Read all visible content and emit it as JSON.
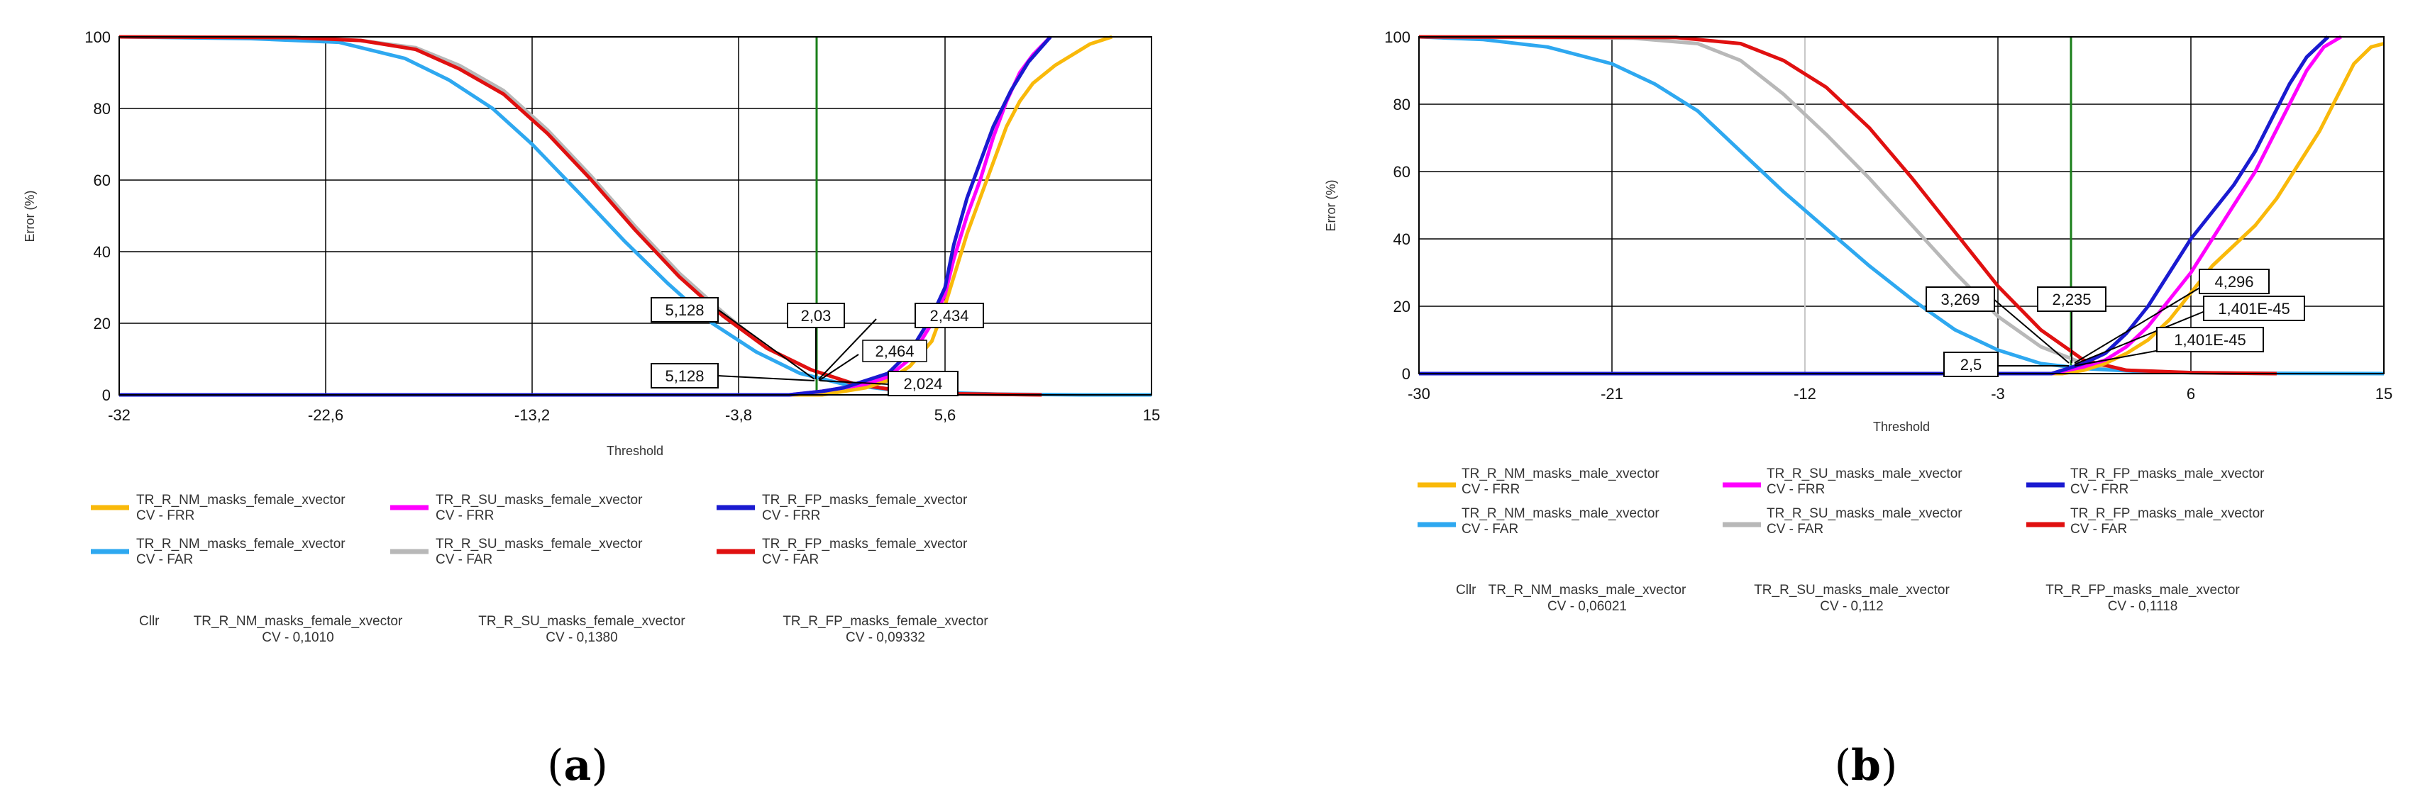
{
  "chart_data": [
    {
      "id": "a",
      "caption_open": "(",
      "caption_letter": "a",
      "caption_close": ")",
      "type": "line",
      "xlabel": "Threshold",
      "ylabel": "Error (%)",
      "xlim": [
        -32,
        15
      ],
      "ylim": [
        0,
        100
      ],
      "xticks": [
        -32,
        -22.6,
        -13.2,
        -3.8,
        5.6,
        15
      ],
      "xtick_labels": [
        "-32",
        "-22,6",
        "-13,2",
        "-3,8",
        "5,6",
        "15"
      ],
      "yticks": [
        0,
        20,
        40,
        60,
        80,
        100
      ],
      "vline_x": 1.0,
      "grid": true,
      "series": [
        {
          "name": "TR_R_NM_masks_female_xvector",
          "sub": "CV - FRR",
          "color": "#F9B90A",
          "points": [
            [
              -32,
              0
            ],
            [
              0,
              0
            ],
            [
              1,
              1
            ],
            [
              2,
              2
            ],
            [
              3,
              4
            ],
            [
              4,
              8
            ],
            [
              5,
              15
            ],
            [
              5.6,
              25
            ],
            [
              6,
              33
            ],
            [
              6.6,
              45
            ],
            [
              7.2,
              55
            ],
            [
              7.8,
              65
            ],
            [
              8.4,
              75
            ],
            [
              9,
              82
            ],
            [
              9.6,
              87
            ],
            [
              10.6,
              92
            ],
            [
              11.4,
              95
            ],
            [
              12.2,
              98
            ],
            [
              13.2,
              100
            ]
          ]
        },
        {
          "name": "TR_R_SU_masks_female_xvector",
          "sub": "CV - FRR",
          "color": "#FF00FF",
          "points": [
            [
              -32,
              0
            ],
            [
              -1.5,
              0
            ],
            [
              0,
              1
            ],
            [
              1,
              2
            ],
            [
              2,
              3
            ],
            [
              3,
              5
            ],
            [
              4,
              10
            ],
            [
              5,
              20
            ],
            [
              5.6,
              28
            ],
            [
              6,
              38
            ],
            [
              6.6,
              50
            ],
            [
              7.2,
              60
            ],
            [
              7.8,
              72
            ],
            [
              8.4,
              82
            ],
            [
              9,
              90
            ],
            [
              9.6,
              95
            ],
            [
              10.4,
              100
            ]
          ]
        },
        {
          "name": "TR_R_FP_masks_female_xvector",
          "sub": "CV - FRR",
          "color": "#1A1AD0",
          "points": [
            [
              -32,
              0
            ],
            [
              -1.5,
              0
            ],
            [
              0,
              1
            ],
            [
              1,
              2
            ],
            [
              2,
              4
            ],
            [
              3,
              6
            ],
            [
              4,
              12
            ],
            [
              5,
              22
            ],
            [
              5.6,
              30
            ],
            [
              6,
              42
            ],
            [
              6.6,
              55
            ],
            [
              7.2,
              65
            ],
            [
              7.8,
              75
            ],
            [
              8.6,
              85
            ],
            [
              9.4,
              93
            ],
            [
              10.4,
              100
            ]
          ]
        },
        {
          "name": "TR_R_NM_masks_female_xvector",
          "sub": "CV - FAR",
          "color": "#2EA8F0",
          "points": [
            [
              -32,
              100
            ],
            [
              -26,
              99.5
            ],
            [
              -22,
              98.5
            ],
            [
              -19,
              94
            ],
            [
              -17,
              88
            ],
            [
              -15,
              80
            ],
            [
              -13.2,
              70
            ],
            [
              -11,
              56
            ],
            [
              -9,
              43
            ],
            [
              -7,
              31
            ],
            [
              -5,
              20
            ],
            [
              -3,
              12
            ],
            [
              -1,
              6
            ],
            [
              1,
              3
            ],
            [
              3,
              1.5
            ],
            [
              5,
              0.7
            ],
            [
              8,
              0.2
            ],
            [
              12,
              0
            ],
            [
              15,
              0
            ]
          ]
        },
        {
          "name": "TR_R_SU_masks_female_xvector",
          "sub": "CV - FAR",
          "color": "#B8B8B8",
          "points": [
            [
              -32,
              100
            ],
            [
              -24,
              99.8
            ],
            [
              -21,
              99
            ],
            [
              -18.5,
              97
            ],
            [
              -16.5,
              92
            ],
            [
              -14.5,
              85
            ],
            [
              -12.5,
              74
            ],
            [
              -10.5,
              61
            ],
            [
              -8.5,
              47
            ],
            [
              -6.5,
              34
            ],
            [
              -4.5,
              23
            ],
            [
              -2.5,
              13
            ],
            [
              -0.5,
              7
            ],
            [
              1.5,
              3
            ],
            [
              3.5,
              1.2
            ],
            [
              6,
              0.3
            ],
            [
              10,
              0
            ]
          ]
        },
        {
          "name": "TR_R_FP_masks_female_xvector",
          "sub": "CV - FAR",
          "color": "#E01010",
          "points": [
            [
              -32,
              100
            ],
            [
              -24,
              99.8
            ],
            [
              -21,
              99
            ],
            [
              -18.5,
              96.5
            ],
            [
              -16.5,
              91
            ],
            [
              -14.5,
              84
            ],
            [
              -12.5,
              73
            ],
            [
              -10.5,
              60
            ],
            [
              -8.5,
              46
            ],
            [
              -6.5,
              33
            ],
            [
              -4.5,
              22
            ],
            [
              -2.5,
              13
            ],
            [
              -0.5,
              7
            ],
            [
              1.5,
              3
            ],
            [
              3.5,
              1.2
            ],
            [
              6,
              0.3
            ],
            [
              10,
              0
            ]
          ]
        }
      ],
      "callouts": [
        "5,128",
        "2,03",
        "2,434",
        "2,464",
        "5,128",
        "2,024"
      ],
      "cllr_label": "Cllr",
      "cllr": [
        {
          "name": "TR_R_NM_masks_female_xvector",
          "value": "CV - 0,1010"
        },
        {
          "name": "TR_R_SU_masks_female_xvector",
          "value": "CV - 0,1380"
        },
        {
          "name": "TR_R_FP_masks_female_xvector",
          "value": "CV - 0,09332"
        }
      ]
    },
    {
      "id": "b",
      "caption_open": "(",
      "caption_letter": "b",
      "caption_close": ")",
      "type": "line",
      "xlabel": "Threshold",
      "ylabel": "Error (%)",
      "xlim": [
        -30,
        15
      ],
      "ylim": [
        0,
        100
      ],
      "xticks": [
        -30,
        -21,
        -12,
        -3,
        6,
        15
      ],
      "xtick_labels": [
        "-30",
        "-21",
        "-12",
        "-3",
        "6",
        "15"
      ],
      "yticks": [
        0,
        20,
        40,
        60,
        80,
        100
      ],
      "vline_x": 1.0,
      "grid": true,
      "series": [
        {
          "name": "TR_R_NM_masks_male_xvector",
          "sub": "CV - FRR",
          "color": "#F9B90A",
          "points": [
            [
              -30,
              0
            ],
            [
              0,
              0
            ],
            [
              1,
              1
            ],
            [
              2,
              3
            ],
            [
              3,
              6
            ],
            [
              4,
              10
            ],
            [
              5,
              16
            ],
            [
              6,
              24
            ],
            [
              7,
              32
            ],
            [
              8,
              38
            ],
            [
              9,
              44
            ],
            [
              10,
              52
            ],
            [
              11,
              62
            ],
            [
              12,
              72
            ],
            [
              12.8,
              82
            ],
            [
              13.6,
              92
            ],
            [
              14.4,
              97
            ],
            [
              15,
              98
            ]
          ]
        },
        {
          "name": "TR_R_SU_masks_male_xvector",
          "sub": "CV - FRR",
          "color": "#FF00FF",
          "points": [
            [
              -30,
              0
            ],
            [
              -0.5,
              0
            ],
            [
              1,
              2
            ],
            [
              2,
              4
            ],
            [
              3,
              8
            ],
            [
              4,
              14
            ],
            [
              5,
              22
            ],
            [
              6,
              30
            ],
            [
              7,
              40
            ],
            [
              8,
              50
            ],
            [
              9,
              60
            ],
            [
              9.8,
              70
            ],
            [
              10.6,
              80
            ],
            [
              11.4,
              90
            ],
            [
              12.2,
              97
            ],
            [
              13,
              100
            ]
          ]
        },
        {
          "name": "TR_R_FP_masks_male_xvector",
          "sub": "CV - FRR",
          "color": "#1A1AD0",
          "points": [
            [
              -30,
              0
            ],
            [
              -0.5,
              0
            ],
            [
              1,
              3
            ],
            [
              2,
              6
            ],
            [
              3,
              12
            ],
            [
              4,
              20
            ],
            [
              5,
              30
            ],
            [
              6,
              40
            ],
            [
              7,
              48
            ],
            [
              8,
              56
            ],
            [
              9,
              66
            ],
            [
              9.8,
              76
            ],
            [
              10.6,
              86
            ],
            [
              11.4,
              94
            ],
            [
              12.4,
              100
            ]
          ]
        },
        {
          "name": "TR_R_NM_masks_male_xvector",
          "sub": "CV - FAR",
          "color": "#2EA8F0",
          "points": [
            [
              -30,
              100
            ],
            [
              -27,
              99.2
            ],
            [
              -24,
              97
            ],
            [
              -21,
              92
            ],
            [
              -19,
              86
            ],
            [
              -17,
              78
            ],
            [
              -15,
              66
            ],
            [
              -13,
              54
            ],
            [
              -11,
              43
            ],
            [
              -9,
              32
            ],
            [
              -7,
              22
            ],
            [
              -5,
              13
            ],
            [
              -3,
              7
            ],
            [
              -1,
              3
            ],
            [
              1,
              1.5
            ],
            [
              4,
              0.5
            ],
            [
              8,
              0.1
            ],
            [
              15,
              0
            ]
          ]
        },
        {
          "name": "TR_R_SU_masks_male_xvector",
          "sub": "CV - FAR",
          "color": "#B8B8B8",
          "points": [
            [
              -30,
              100
            ],
            [
              -20,
              99.6
            ],
            [
              -17,
              98
            ],
            [
              -15,
              93
            ],
            [
              -13,
              83
            ],
            [
              -11,
              71
            ],
            [
              -9,
              58
            ],
            [
              -7,
              44
            ],
            [
              -5,
              30
            ],
            [
              -3,
              17
            ],
            [
              -1,
              8
            ],
            [
              1,
              3
            ],
            [
              3,
              1
            ],
            [
              6,
              0.2
            ],
            [
              10,
              0
            ]
          ]
        },
        {
          "name": "TR_R_FP_masks_male_xvector",
          "sub": "CV - FAR",
          "color": "#E01010",
          "points": [
            [
              -30,
              100
            ],
            [
              -18,
              99.8
            ],
            [
              -15,
              98
            ],
            [
              -13,
              93
            ],
            [
              -11,
              85
            ],
            [
              -9,
              73
            ],
            [
              -7,
              58
            ],
            [
              -5,
              42
            ],
            [
              -3,
              26
            ],
            [
              -1,
              13
            ],
            [
              1,
              4
            ],
            [
              3,
              1
            ],
            [
              6,
              0.3
            ],
            [
              10,
              0
            ]
          ]
        }
      ],
      "callouts": [
        "3,269",
        "2,235",
        "4,296",
        "1,401E-45",
        "1,401E-45",
        "2,5"
      ],
      "cllr_label": "Cllr",
      "cllr": [
        {
          "name": "TR_R_NM_masks_male_xvector",
          "value": "CV - 0,06021"
        },
        {
          "name": "TR_R_SU_masks_male_xvector",
          "value": "CV - 0,112"
        },
        {
          "name": "TR_R_FP_masks_male_xvector",
          "value": "CV - 0,1118"
        }
      ]
    }
  ]
}
